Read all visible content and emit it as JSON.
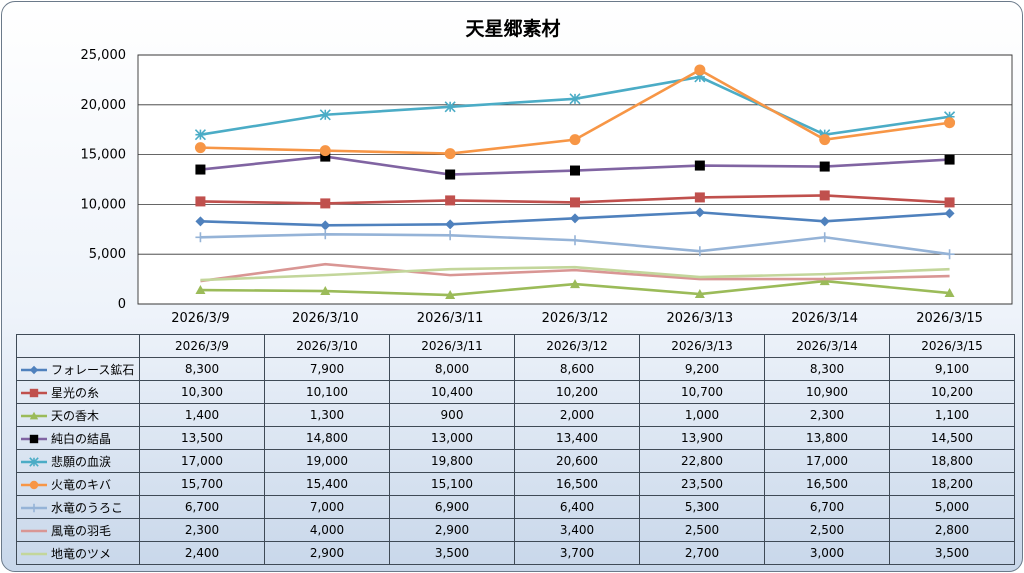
{
  "chart_data": {
    "type": "line",
    "title": "天星郷素材",
    "categories": [
      "2026/3/9",
      "2026/3/10",
      "2026/3/11",
      "2026/3/12",
      "2026/3/13",
      "2026/3/14",
      "2026/3/15"
    ],
    "ylim": [
      0,
      25000
    ],
    "yticks": [
      "0",
      "5,000",
      "10,000",
      "15,000",
      "20,000",
      "25,000"
    ],
    "grid": true,
    "legend": "data-table",
    "series": [
      {
        "name": "フォレース鉱石",
        "color": "#4f81bd",
        "marker": "diamond",
        "values": [
          8300,
          7900,
          8000,
          8600,
          9200,
          8300,
          9100
        ],
        "labels": [
          "8,300",
          "7,900",
          "8,000",
          "8,600",
          "9,200",
          "8,300",
          "9,100"
        ]
      },
      {
        "name": "星光の糸",
        "color": "#c0504d",
        "marker": "square",
        "values": [
          10300,
          10100,
          10400,
          10200,
          10700,
          10900,
          10200
        ],
        "labels": [
          "10,300",
          "10,100",
          "10,400",
          "10,200",
          "10,700",
          "10,900",
          "10,200"
        ]
      },
      {
        "name": "天の香木",
        "color": "#9bbb59",
        "marker": "triangle",
        "values": [
          1400,
          1300,
          900,
          2000,
          1000,
          2300,
          1100
        ],
        "labels": [
          "1,400",
          "1,300",
          "900",
          "2,000",
          "1,000",
          "2,300",
          "1,100"
        ]
      },
      {
        "name": "純白の結晶",
        "color": "#8064a2",
        "marker": "blacksquare",
        "values": [
          13500,
          14800,
          13000,
          13400,
          13900,
          13800,
          14500
        ],
        "labels": [
          "13,500",
          "14,800",
          "13,000",
          "13,400",
          "13,900",
          "13,800",
          "14,500"
        ]
      },
      {
        "name": "悲願の血涙",
        "color": "#4bacc6",
        "marker": "star",
        "values": [
          17000,
          19000,
          19800,
          20600,
          22800,
          17000,
          18800
        ],
        "labels": [
          "17,000",
          "19,000",
          "19,800",
          "20,600",
          "22,800",
          "17,000",
          "18,800"
        ]
      },
      {
        "name": "火竜のキバ",
        "color": "#f79646",
        "marker": "circle",
        "values": [
          15700,
          15400,
          15100,
          16500,
          23500,
          16500,
          18200
        ],
        "labels": [
          "15,700",
          "15,400",
          "15,100",
          "16,500",
          "23,500",
          "16,500",
          "18,200"
        ]
      },
      {
        "name": "水竜のうろこ",
        "color": "#95b3d7",
        "marker": "plus",
        "values": [
          6700,
          7000,
          6900,
          6400,
          5300,
          6700,
          5000
        ],
        "labels": [
          "6,700",
          "7,000",
          "6,900",
          "6,400",
          "5,300",
          "6,700",
          "5,000"
        ]
      },
      {
        "name": "風竜の羽毛",
        "color": "#d99694",
        "marker": "none",
        "values": [
          2300,
          4000,
          2900,
          3400,
          2500,
          2500,
          2800
        ],
        "labels": [
          "2,300",
          "4,000",
          "2,900",
          "3,400",
          "2,500",
          "2,500",
          "2,800"
        ]
      },
      {
        "name": "地竜のツメ",
        "color": "#c3d69b",
        "marker": "none",
        "values": [
          2400,
          2900,
          3500,
          3700,
          2700,
          3000,
          3500
        ],
        "labels": [
          "2,400",
          "2,900",
          "3,500",
          "3,700",
          "2,700",
          "3,000",
          "3,500"
        ]
      }
    ]
  }
}
